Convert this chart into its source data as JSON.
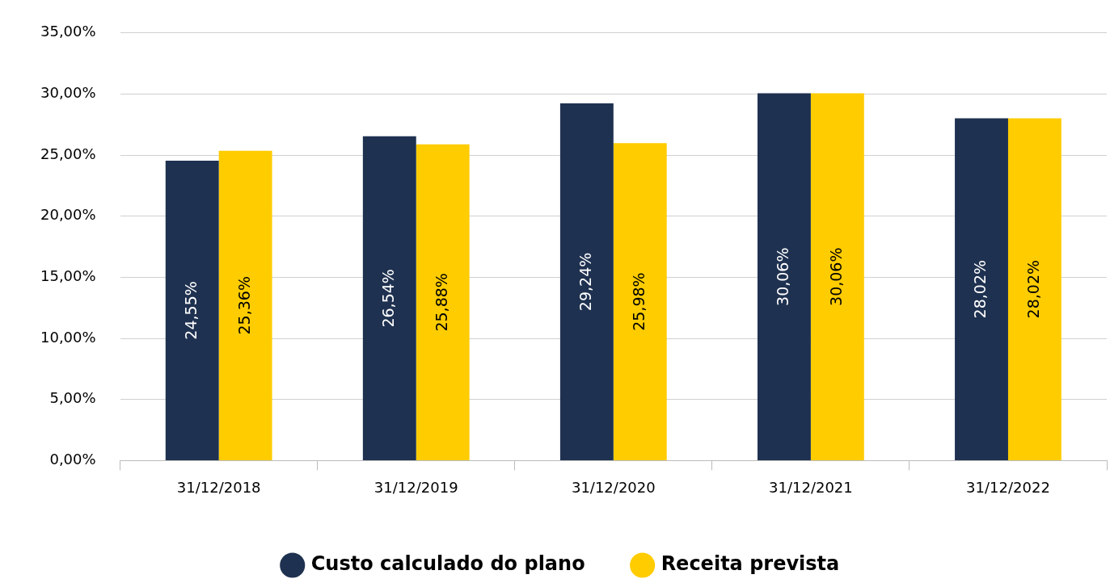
{
  "chart_data": {
    "type": "bar",
    "categories": [
      "31/12/2018",
      "31/12/2019",
      "31/12/2020",
      "31/12/2021",
      "31/12/2022"
    ],
    "series": [
      {
        "name": "Custo calculado do plano",
        "color": "#1f3150",
        "values": [
          24.55,
          26.54,
          29.24,
          30.06,
          28.02
        ],
        "value_labels": [
          "24,55%",
          "26,54%",
          "29,24%",
          "30,06%",
          "28,02%"
        ]
      },
      {
        "name": "Receita prevista",
        "color": "#ffcc00",
        "values": [
          25.36,
          25.88,
          25.98,
          30.06,
          28.02
        ],
        "value_labels": [
          "25,36%",
          "25,88%",
          "25,98%",
          "30,06%",
          "28,02%"
        ]
      }
    ],
    "ylim": [
      0,
      35
    ],
    "yticks": [
      {
        "value": 0,
        "label": "0,00%"
      },
      {
        "value": 5,
        "label": "5,00%"
      },
      {
        "value": 10,
        "label": "10,00%"
      },
      {
        "value": 15,
        "label": "15,00%"
      },
      {
        "value": 20,
        "label": "20,00%"
      },
      {
        "value": 25,
        "label": "25,00%"
      },
      {
        "value": 30,
        "label": "30,00%"
      },
      {
        "value": 35,
        "label": "35,00%"
      }
    ],
    "grid": "y",
    "legend": "bottom"
  }
}
